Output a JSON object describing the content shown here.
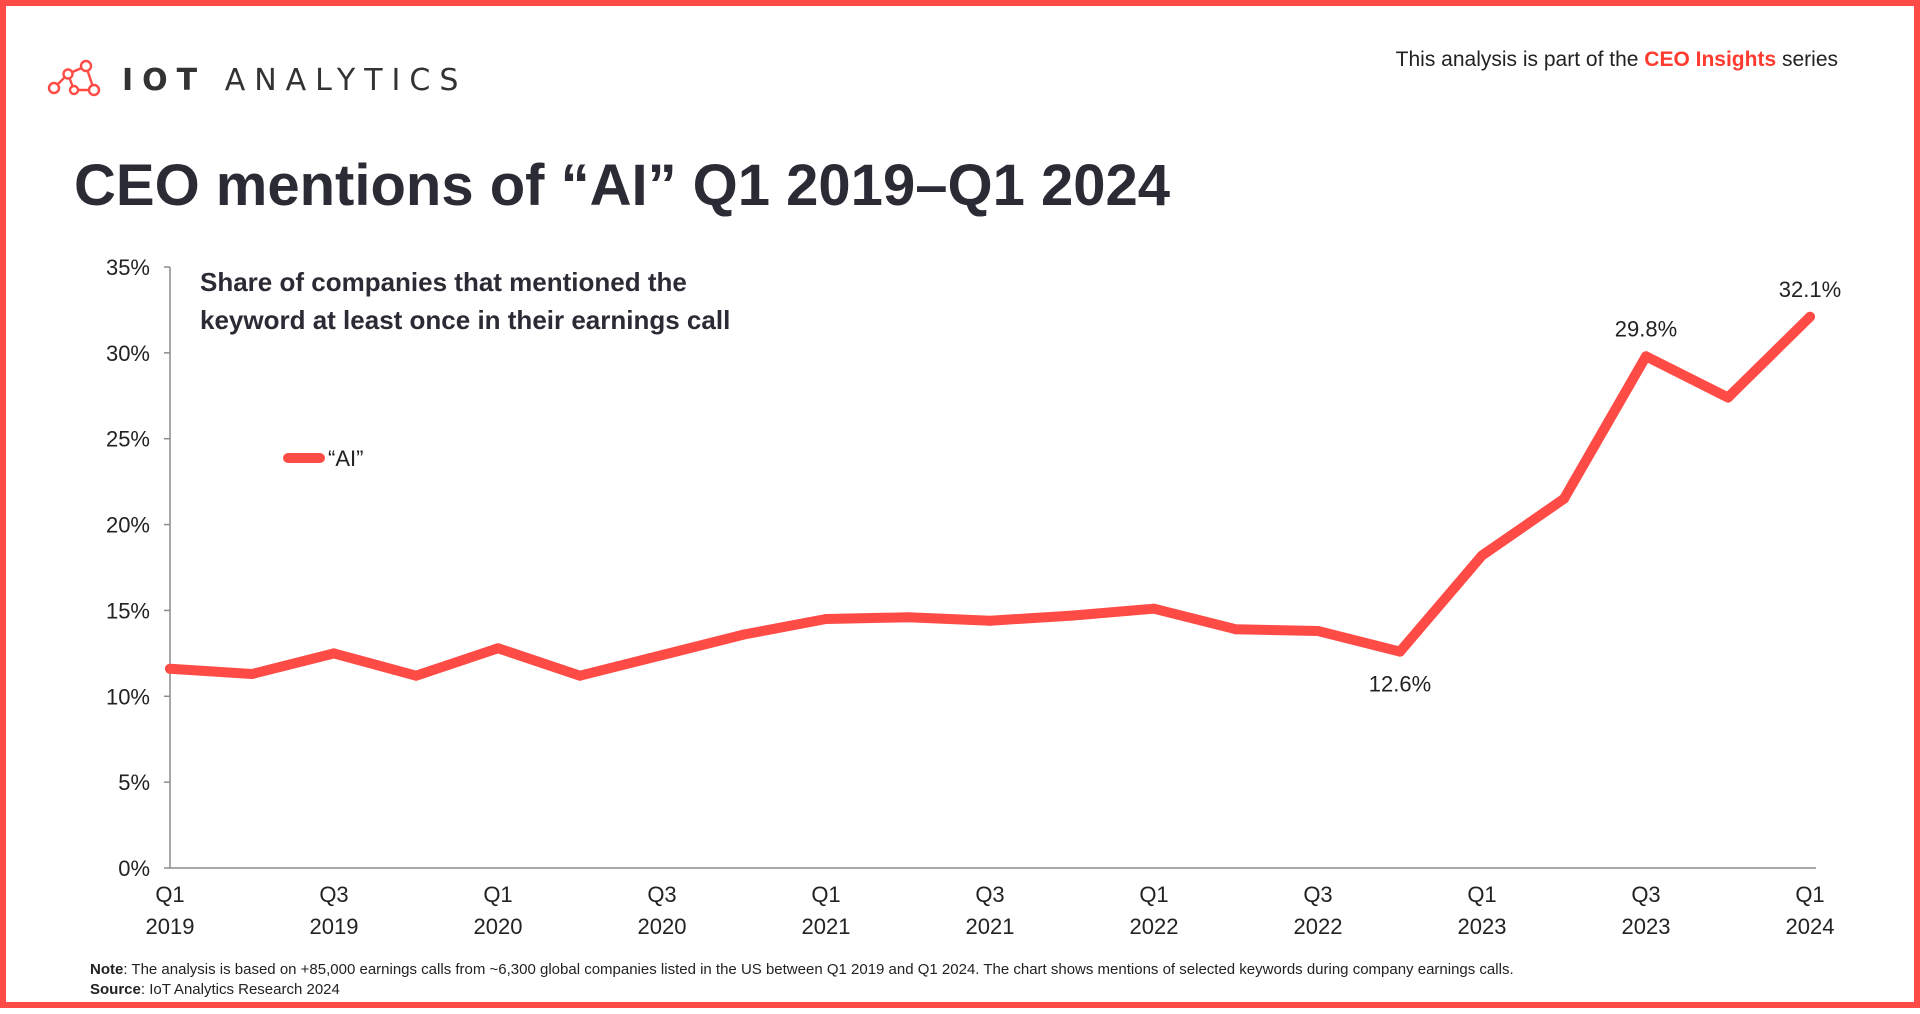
{
  "header": {
    "logo_text_bold": "IOT",
    "logo_text_light": "ANALYTICS",
    "series_prefix": "This analysis is part of the ",
    "series_highlight": "CEO Insights",
    "series_suffix": " series"
  },
  "title": "CEO mentions of “AI” Q1 2019–Q1 2024",
  "footer": {
    "note_label": "Note",
    "note_text": ": The analysis is based on +85,000 earnings calls from ~6,300 global companies listed in the US between Q1 2019 and Q1 2024. The chart shows mentions of selected keywords during company earnings calls.",
    "source_label": "Source",
    "source_text": ": IoT Analytics Research 2024"
  },
  "colors": {
    "accent": "#ff4b45",
    "text": "#2b2b35"
  },
  "icons": {
    "logo": "network-nodes-icon"
  },
  "chart_data": {
    "type": "line",
    "subtitle_lines": [
      "Share of companies that mentioned the",
      "keyword at least once in their earnings call"
    ],
    "x": [
      "Q1 2019",
      "Q2 2019",
      "Q3 2019",
      "Q4 2019",
      "Q1 2020",
      "Q2 2020",
      "Q3 2020",
      "Q4 2020",
      "Q1 2021",
      "Q2 2021",
      "Q3 2021",
      "Q4 2021",
      "Q1 2022",
      "Q2 2022",
      "Q3 2022",
      "Q4 2022",
      "Q1 2023",
      "Q2 2023",
      "Q3 2023",
      "Q4 2023",
      "Q1 2024"
    ],
    "x_tick_labels": [
      {
        "index": 0,
        "line1": "Q1",
        "line2": "2019"
      },
      {
        "index": 2,
        "line1": "Q3",
        "line2": "2019"
      },
      {
        "index": 4,
        "line1": "Q1",
        "line2": "2020"
      },
      {
        "index": 6,
        "line1": "Q3",
        "line2": "2020"
      },
      {
        "index": 8,
        "line1": "Q1",
        "line2": "2021"
      },
      {
        "index": 10,
        "line1": "Q3",
        "line2": "2021"
      },
      {
        "index": 12,
        "line1": "Q1",
        "line2": "2022"
      },
      {
        "index": 14,
        "line1": "Q3",
        "line2": "2022"
      },
      {
        "index": 16,
        "line1": "Q1",
        "line2": "2023"
      },
      {
        "index": 18,
        "line1": "Q3",
        "line2": "2023"
      },
      {
        "index": 20,
        "line1": "Q1",
        "line2": "2024"
      }
    ],
    "series": [
      {
        "name": "“AI”",
        "color": "#ff4b45",
        "values": [
          11.6,
          11.3,
          12.5,
          11.2,
          12.8,
          11.2,
          12.4,
          13.6,
          14.5,
          14.6,
          14.4,
          14.7,
          15.1,
          13.9,
          13.8,
          12.6,
          18.2,
          21.5,
          29.8,
          27.4,
          32.1
        ]
      }
    ],
    "data_labels": [
      {
        "index": 15,
        "text": "12.6%",
        "position": "below"
      },
      {
        "index": 18,
        "text": "29.8%",
        "position": "above"
      },
      {
        "index": 20,
        "text": "32.1%",
        "position": "above"
      }
    ],
    "y_ticks": [
      "0%",
      "5%",
      "10%",
      "15%",
      "20%",
      "25%",
      "30%",
      "35%"
    ],
    "ylim": [
      0,
      35
    ],
    "grid": false,
    "legend": "inside-top-left"
  }
}
